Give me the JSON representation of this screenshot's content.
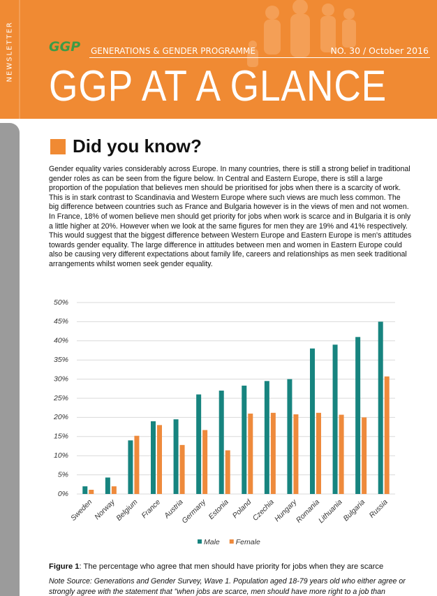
{
  "header": {
    "side_label": "NEWSLETTER",
    "logo": "GGP",
    "programme": "GENERATIONS & GENDER PROGRAMME",
    "issue": "NO. 30 / October 2016",
    "title": "GGP AT A GLANCE"
  },
  "section": {
    "heading": "Did you know?",
    "body": "Gender equality varies considerably across Europe. In many countries, there is still a strong belief in traditional gender roles as can be seen from the figure below. In Central and Eastern Europe, there is still a large proportion of the population that believes men should be prioritised for jobs when there is a scarcity of work. This is in stark contrast to Scandinavia and Western Europe where such views are much less common. The big difference between countries such as France and Bulgaria however is in the views of men and not women. In France, 18% of women believe men should get priority for jobs when work is scarce and in Bulgaria it is only a little higher at 20%. However when we look at the same figures for men they are 19% and 41% respectively. This would suggest that the biggest difference between Western Europe and Eastern Europe is men's attitudes towards gender equality. The large difference in attitudes between men and women in Eastern Europe could also be causing very different expectations about family life, careers and relationships as men seek traditional arrangements whilst women seek gender equality.",
    "caption_label": "Figure 1",
    "caption": ": The percentage who agree that men should have priority for jobs when they are scarce",
    "note": "Note Source: Generations and Gender Survey, Wave 1. Population aged 18-79 years old who either agree or strongly agree with the statement that \"when jobs are scarce, men should have more right to a job than"
  },
  "chart_data": {
    "type": "bar",
    "categories": [
      "Sweden",
      "Norway",
      "Belgium",
      "France",
      "Austria",
      "Germany",
      "Estonia",
      "Poland",
      "Czechia",
      "Hungary",
      "Romania",
      "Lithuania",
      "Bulgaria",
      "Russia"
    ],
    "series": [
      {
        "name": "Male",
        "color": "#17847f",
        "values": [
          2,
          4.3,
          14,
          19,
          19.5,
          26,
          27,
          28.3,
          29.5,
          30,
          38,
          39,
          41,
          45
        ]
      },
      {
        "name": "Female",
        "color": "#ee8a3c",
        "values": [
          1.1,
          2,
          15.2,
          18,
          12.8,
          16.7,
          11.4,
          21,
          21.2,
          20.8,
          21.2,
          20.7,
          20,
          30.7
        ]
      }
    ],
    "ylim": [
      0,
      50
    ],
    "yticks": [
      {
        "value": 0,
        "label": "0%"
      },
      {
        "value": 5,
        "label": "5%"
      },
      {
        "value": 10,
        "label": "10%"
      },
      {
        "value": 15,
        "label": "15%"
      },
      {
        "value": 20,
        "label": "20%"
      },
      {
        "value": 25,
        "label": "25%"
      },
      {
        "value": 30,
        "label": "30%"
      },
      {
        "value": 35,
        "label": "35%"
      },
      {
        "value": 40,
        "label": "40%"
      },
      {
        "value": 45,
        "label": "45%"
      },
      {
        "value": 50,
        "label": "50%"
      }
    ],
    "grid": true,
    "legend": "bottom"
  }
}
